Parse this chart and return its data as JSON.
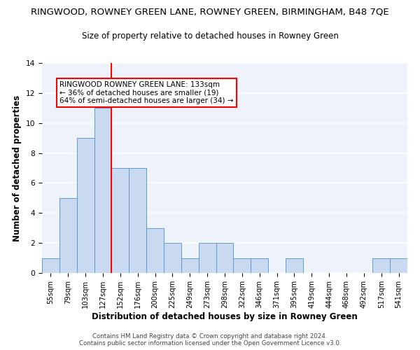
{
  "title": "RINGWOOD, ROWNEY GREEN LANE, ROWNEY GREEN, BIRMINGHAM, B48 7QE",
  "subtitle": "Size of property relative to detached houses in Rowney Green",
  "xlabel": "Distribution of detached houses by size in Rowney Green",
  "ylabel": "Number of detached properties",
  "categories": [
    "55sqm",
    "79sqm",
    "103sqm",
    "127sqm",
    "152sqm",
    "176sqm",
    "200sqm",
    "225sqm",
    "249sqm",
    "273sqm",
    "298sqm",
    "322sqm",
    "346sqm",
    "371sqm",
    "395sqm",
    "419sqm",
    "444sqm",
    "468sqm",
    "492sqm",
    "517sqm",
    "541sqm"
  ],
  "values": [
    1,
    5,
    9,
    11,
    7,
    7,
    3,
    2,
    1,
    2,
    2,
    1,
    1,
    0,
    1,
    0,
    0,
    0,
    0,
    1,
    1
  ],
  "bar_color": "#c9d9f0",
  "bar_edge_color": "#5b9bd5",
  "vline_x": 3.5,
  "vline_color": "red",
  "ylim": [
    0,
    14
  ],
  "yticks": [
    0,
    2,
    4,
    6,
    8,
    10,
    12,
    14
  ],
  "annotation_title": "RINGWOOD ROWNEY GREEN LANE: 133sqm",
  "annotation_line1": "← 36% of detached houses are smaller (19)",
  "annotation_line2": "64% of semi-detached houses are larger (34) →",
  "footer1": "Contains HM Land Registry data © Crown copyright and database right 2024.",
  "footer2": "Contains public sector information licensed under the Open Government Licence v3.0.",
  "bg_color": "#eef2fa",
  "title_fontsize": 9.5,
  "subtitle_fontsize": 8.5,
  "axis_label_fontsize": 8.5,
  "tick_fontsize": 7.2,
  "annotation_fontsize": 7.5,
  "footer_fontsize": 6.2
}
